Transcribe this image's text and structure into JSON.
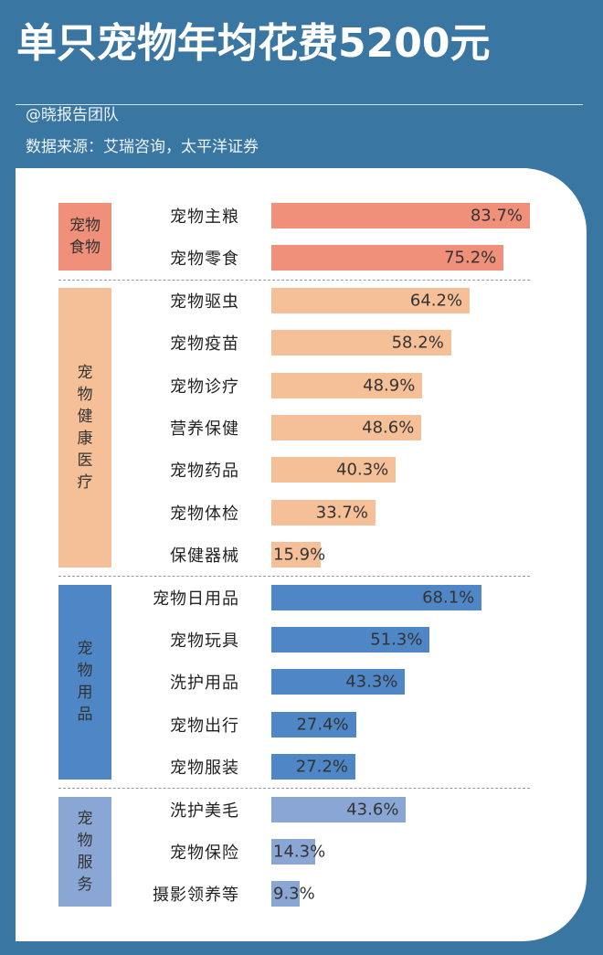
{
  "header": {
    "title": "单只宠物年均花费5200元",
    "author": "@晓报告团队",
    "source": "数据来源：艾瑞咨询，太平洋证券"
  },
  "chart_data": {
    "type": "bar",
    "orientation": "horizontal",
    "unit": "%",
    "groups": [
      {
        "name": "宠物食物",
        "color": "#f0907a",
        "items": [
          {
            "label": "宠物主粮",
            "value": 83.7,
            "text": "83.7%"
          },
          {
            "label": "宠物零食",
            "value": 75.2,
            "text": "75.2%"
          }
        ]
      },
      {
        "name": "宠物健康医疗",
        "color": "#f5bf98",
        "items": [
          {
            "label": "宠物驱虫",
            "value": 64.2,
            "text": "64.2%"
          },
          {
            "label": "宠物疫苗",
            "value": 58.2,
            "text": "58.2%"
          },
          {
            "label": "宠物诊疗",
            "value": 48.9,
            "text": "48.9%"
          },
          {
            "label": "营养保健",
            "value": 48.6,
            "text": "48.6%"
          },
          {
            "label": "宠物药品",
            "value": 40.3,
            "text": "40.3%"
          },
          {
            "label": "宠物体检",
            "value": 33.7,
            "text": "33.7%"
          },
          {
            "label": "保健器械",
            "value": 15.9,
            "text": "15.9%"
          }
        ]
      },
      {
        "name": "宠物用品",
        "color": "#4f86c6",
        "items": [
          {
            "label": "宠物日用品",
            "value": 68.1,
            "text": "68.1%"
          },
          {
            "label": "宠物玩具",
            "value": 51.3,
            "text": "51.3%"
          },
          {
            "label": "洗护用品",
            "value": 43.3,
            "text": "43.3%"
          },
          {
            "label": "宠物出行",
            "value": 27.4,
            "text": "27.4%"
          },
          {
            "label": "宠物服装",
            "value": 27.2,
            "text": "27.2%"
          }
        ]
      },
      {
        "name": "宠物服务",
        "color": "#8aa6d4",
        "items": [
          {
            "label": "洗护美毛",
            "value": 43.6,
            "text": "43.6%"
          },
          {
            "label": "宠物保险",
            "value": 14.3,
            "text": "14.3%"
          },
          {
            "label": "摄影领养等",
            "value": 9.3,
            "text": "9.3%"
          }
        ]
      }
    ]
  }
}
